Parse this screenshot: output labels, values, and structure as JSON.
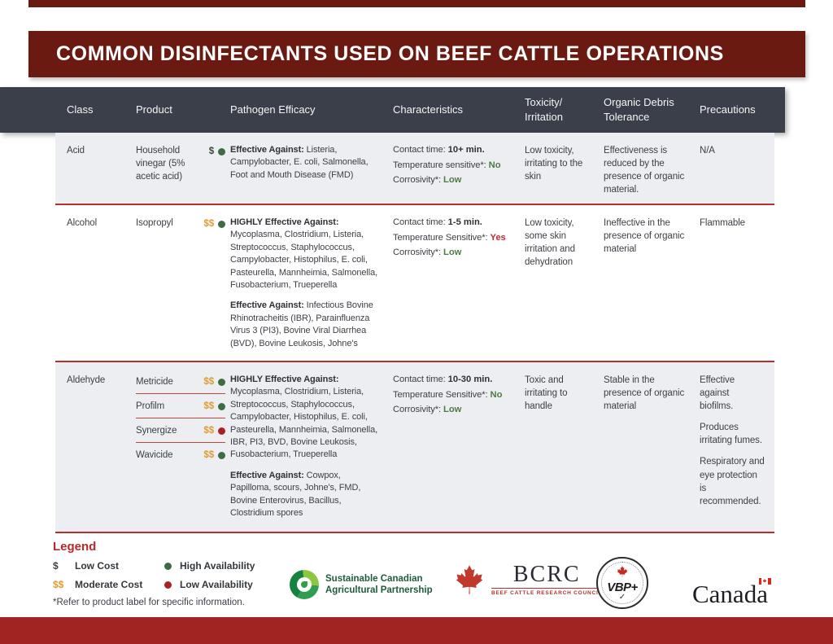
{
  "page": {
    "title": "COMMON DISINFECTANTS USED ON BEEF CATTLE OPERATIONS"
  },
  "colors": {
    "maroon_bar": "#6b1a12",
    "bottom_bar": "#a22422",
    "header_bg": "#3a3f49",
    "row_alt_bg": "#eceef1",
    "separator_red": "#b5302c",
    "value_dark": "#2e3237",
    "value_green": "#4f7b44",
    "value_red": "#c2292e",
    "dollar_single": "#3d463f",
    "dollar_double": "#e39b33",
    "dot_green": "#3d6b45",
    "dot_red": "#aa2125",
    "legend_title": "#b5292c"
  },
  "table": {
    "columns": [
      {
        "key": "class",
        "label": "Class"
      },
      {
        "key": "product",
        "label": "Product"
      },
      {
        "key": "efficacy",
        "label": "Pathogen Efficacy"
      },
      {
        "key": "characteristics",
        "label": "Characteristics"
      },
      {
        "key": "toxicity",
        "label": "Toxicity/\nIrritation"
      },
      {
        "key": "organic",
        "label": "Organic Debris\nTolerance"
      },
      {
        "key": "precautions",
        "label": "Precautions"
      }
    ],
    "rows": [
      {
        "class": "Acid",
        "products": [
          {
            "name": "Household vinegar (5% acetic acid)",
            "cost": "$",
            "availability": "high"
          }
        ],
        "efficacy": [
          {
            "lead": "Effective Against:",
            "text": " Listeria, Campylobacter, E. coli, Salmonella, Foot and Mouth Disease (FMD)"
          }
        ],
        "characteristics": [
          {
            "label": "Contact time: ",
            "value": "10+ min.",
            "tone": "dark"
          },
          {
            "label": "Temperature sensitive*: ",
            "value": "No",
            "tone": "green"
          },
          {
            "label": "Corrosivity*: ",
            "value": "Low",
            "tone": "green"
          }
        ],
        "toxicity": "Low toxicity, irritating to the skin",
        "organic": "Effectiveness is reduced by the presence of organic material.",
        "precautions": [
          "N/A"
        ]
      },
      {
        "class": "Alcohol",
        "products": [
          {
            "name": "Isopropyl",
            "cost": "$$",
            "availability": "high"
          }
        ],
        "efficacy": [
          {
            "lead": "HIGHLY Effective Against:",
            "text": " Mycoplasma, Clostridium, Listeria, Streptococcus, Staphylococcus, Campylobacter, Histophilus, E. coli, Pasteurella, Mannheimia, Salmonella, Fusobacterium, Trueperella"
          },
          {
            "lead": "Effective Against:",
            "text": " Infectious Bovine Rhinotracheitis (IBR), Parainfluenza Virus 3 (PI3), Bovine Viral Diarrhea (BVD), Bovine Leukosis, Johne's"
          }
        ],
        "characteristics": [
          {
            "label": "Contact time: ",
            "value": "1-5 min.",
            "tone": "dark"
          },
          {
            "label": "Temperature Sensitive*: ",
            "value": "Yes",
            "tone": "red"
          },
          {
            "label": "Corrosivity*: ",
            "value": "Low",
            "tone": "green"
          }
        ],
        "toxicity": "Low toxicity, some skin irritation and dehydration",
        "organic": "Ineffective in the presence of organic material",
        "precautions": [
          "Flammable"
        ]
      },
      {
        "class": "Aldehyde",
        "products": [
          {
            "name": "Metricide",
            "cost": "$$",
            "availability": "high"
          },
          {
            "name": "Profilm",
            "cost": "$$",
            "availability": "high"
          },
          {
            "name": "Synergize",
            "cost": "$$",
            "availability": "low"
          },
          {
            "name": "Wavicide",
            "cost": "$$",
            "availability": "high"
          }
        ],
        "efficacy": [
          {
            "lead": "HIGHLY Effective Against:",
            "text": " Mycoplasma, Clostridium, Listeria, Streptococcus, Staphylococcus, Campylobacter, Histophilus, E. coli, Pasteurella, Mannheimia, Salmonella, IBR, PI3, BVD, Bovine Leukosis, Fusobacterium, Trueperella"
          },
          {
            "lead": "Effective Against:",
            "text": " Cowpox, Papilloma, scours, Johne's, FMD, Bovine Enterovirus, Bacillus, Clostridium spores"
          }
        ],
        "characteristics": [
          {
            "label": "Contact time: ",
            "value": "10-30 min.",
            "tone": "dark"
          },
          {
            "label": "Temperature Sensitive*: ",
            "value": "No",
            "tone": "green"
          },
          {
            "label": "Corrosivity*: ",
            "value": "Low",
            "tone": "green"
          }
        ],
        "toxicity": "Toxic and irritating to handle",
        "organic": "Stable in the presence of organic material",
        "precautions": [
          "Effective against biofilms.",
          "Produces irritating fumes.",
          "Respiratory and eye protection is recommended."
        ]
      }
    ]
  },
  "legend": {
    "title": "Legend",
    "cost": [
      {
        "symbol": "$",
        "label": "Low Cost"
      },
      {
        "symbol": "$$",
        "label": "Moderate Cost"
      }
    ],
    "availability": [
      {
        "tone": "high",
        "label": "High Availability"
      },
      {
        "tone": "low",
        "label": "Low Availability"
      }
    ],
    "footnote": "*Refer to product label for specific information."
  },
  "logos": {
    "scap": {
      "line1": "Sustainable Canadian",
      "line2": "Agricultural Partnership"
    },
    "bcrc": {
      "name": "BCRC",
      "tagline": "BEEF CATTLE RESEARCH COUNCIL"
    },
    "vbp": {
      "name": "VBP+",
      "check": "✓"
    },
    "canada": {
      "wordmark": "Canada"
    }
  }
}
